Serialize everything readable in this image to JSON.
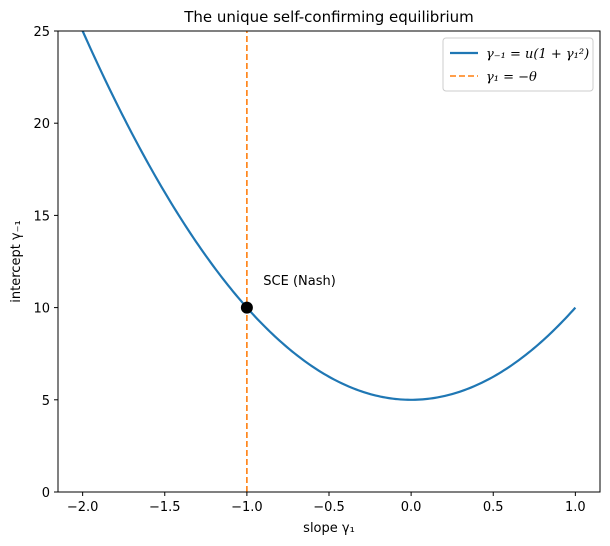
{
  "chart_data": {
    "type": "line",
    "title": "The unique self-confirming equilibrium",
    "xlabel": "slope γ₁",
    "ylabel": "intercept γ₋₁",
    "xlim": [
      -2.15,
      1.15
    ],
    "ylim": [
      0,
      25
    ],
    "xticks": [
      -2.0,
      -1.5,
      -1.0,
      -0.5,
      0.0,
      0.5,
      1.0
    ],
    "xtick_labels": [
      "−2.0",
      "−1.5",
      "−1.0",
      "−0.5",
      "0.0",
      "0.5",
      "1.0"
    ],
    "yticks": [
      0,
      5,
      10,
      15,
      20,
      25
    ],
    "ytick_labels": [
      "0",
      "5",
      "10",
      "15",
      "20",
      "25"
    ],
    "grid": false,
    "legend_position": "top-right",
    "series": [
      {
        "name": "γ₋₁ = u(1 + γ₁²)",
        "style": "solid",
        "color": "#1f77b4",
        "x": [
          -2.0,
          -1.8,
          -1.6,
          -1.4,
          -1.2,
          -1.0,
          -0.8,
          -0.6,
          -0.4,
          -0.2,
          0.0,
          0.2,
          0.4,
          0.6,
          0.8,
          1.0
        ],
        "y": [
          25.0,
          21.2,
          17.8,
          14.8,
          12.2,
          10.0,
          8.2,
          6.8,
          5.8,
          5.2,
          5.0,
          5.2,
          5.8,
          6.8,
          8.2,
          10.0
        ]
      },
      {
        "name": "γ₁ = −θ",
        "style": "dashed",
        "color": "#ff7f0e",
        "x": [
          -1.0,
          -1.0
        ],
        "y": [
          0,
          25
        ]
      }
    ],
    "points": [
      {
        "x": -1.0,
        "y": 10.0,
        "color": "#000000"
      }
    ],
    "annotations": [
      {
        "text": "SCE (Nash)",
        "x": -0.9,
        "y": 11.0
      }
    ]
  }
}
